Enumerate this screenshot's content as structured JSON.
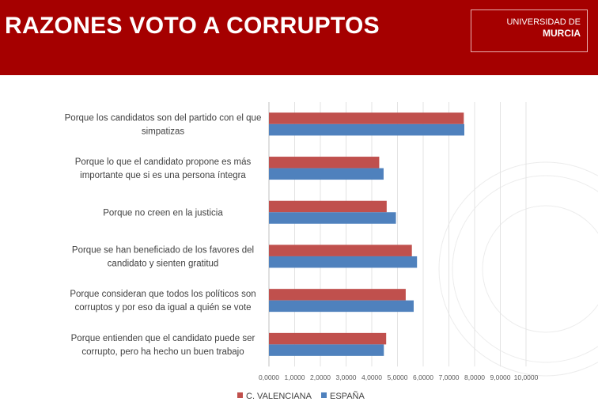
{
  "header": {
    "title": "RAZONES VOTO A CORRUPTOS",
    "logo_line1": "UNIVERSIDAD DE",
    "logo_line2": "MURCIA"
  },
  "chart_data": {
    "type": "bar",
    "orientation": "horizontal",
    "title": "RAZONES VOTO A CORRUPTOS",
    "categories": [
      [
        "Porque los candidatos son del partido con el que",
        "simpatizas"
      ],
      [
        "Porque lo que el candidato propone es más",
        "importante que si es una persona íntegra"
      ],
      [
        "Porque no creen en la justicia"
      ],
      [
        "Porque se han beneficiado de los favores del",
        "candidato y sienten gratitud"
      ],
      [
        "Porque consideran que todos los políticos son",
        "corruptos y por eso da igual a quién se vote"
      ],
      [
        "Porque entienden que el candidato puede ser",
        "corrupto, pero ha hecho un buen trabajo"
      ]
    ],
    "series": [
      {
        "name": "C. VALENCIANA",
        "color": "#c0504d",
        "values": [
          7.58,
          4.29,
          4.58,
          5.56,
          5.32,
          4.56
        ]
      },
      {
        "name": "ESPAÑA",
        "color": "#4f81bd",
        "values": [
          7.6,
          4.46,
          4.94,
          5.76,
          5.63,
          4.47
        ]
      }
    ],
    "xlim": [
      0,
      10
    ],
    "xticks": [
      "0,0000",
      "1,0000",
      "2,0000",
      "3,0000",
      "4,0000",
      "5,0000",
      "6,0000",
      "7,0000",
      "8,0000",
      "9,0000",
      "10,0000"
    ],
    "grid": true,
    "legend": "bottom"
  }
}
